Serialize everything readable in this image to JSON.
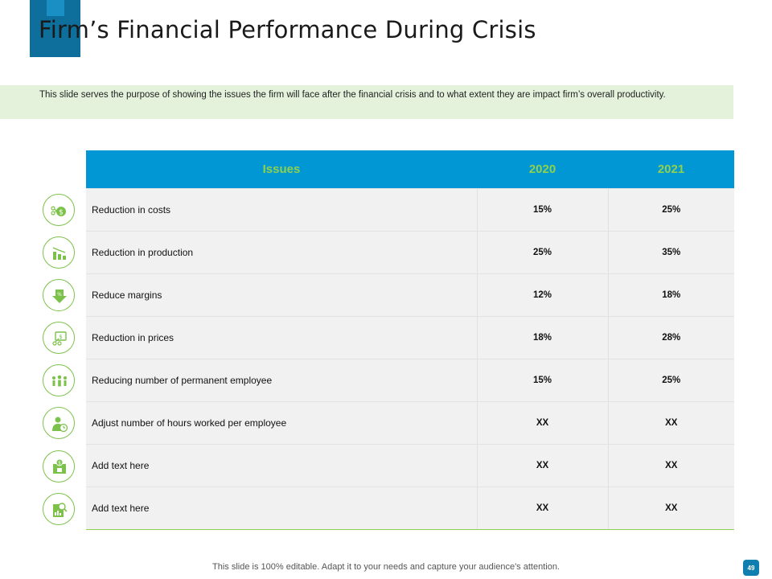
{
  "slide": {
    "title": "Firm’s Financial Performance During Crisis",
    "description": "This slide serves the purpose of showing the issues the firm will face after the financial crisis and to what extent they are impact firm’s overall productivity.",
    "footer": "This slide is 100% editable. Adapt it to your needs and capture your audience's attention.",
    "page_number": "49"
  },
  "colors": {
    "accent_blue": "#0097d4",
    "accent_green": "#8fd14f",
    "title_block": "#0e6f9c"
  },
  "table": {
    "headers": [
      "Issues",
      "2020",
      "2021"
    ],
    "rows": [
      {
        "icon": "money-cut-icon",
        "issue": "Reduction in costs",
        "y2020": "15%",
        "y2021": "25%"
      },
      {
        "icon": "declining-bars-icon",
        "issue": "Reduction in production",
        "y2020": "25%",
        "y2021": "35%"
      },
      {
        "icon": "percent-down-arrow-icon",
        "issue": "Reduce margins",
        "y2020": "12%",
        "y2021": "18%"
      },
      {
        "icon": "price-tag-cut-icon",
        "issue": "Reduction in prices",
        "y2020": "18%",
        "y2021": "28%"
      },
      {
        "icon": "people-group-icon",
        "issue": "Reducing number of permanent employee",
        "y2020": "15%",
        "y2021": "25%"
      },
      {
        "icon": "employee-clock-icon",
        "issue": "Adjust number of hours worked per employee",
        "y2020": "XX",
        "y2021": "XX"
      },
      {
        "icon": "dollar-box-icon",
        "issue": "Add text here",
        "y2020": "XX",
        "y2021": "XX"
      },
      {
        "icon": "report-search-icon",
        "issue": "Add text here",
        "y2020": "XX",
        "y2021": "XX"
      }
    ]
  }
}
